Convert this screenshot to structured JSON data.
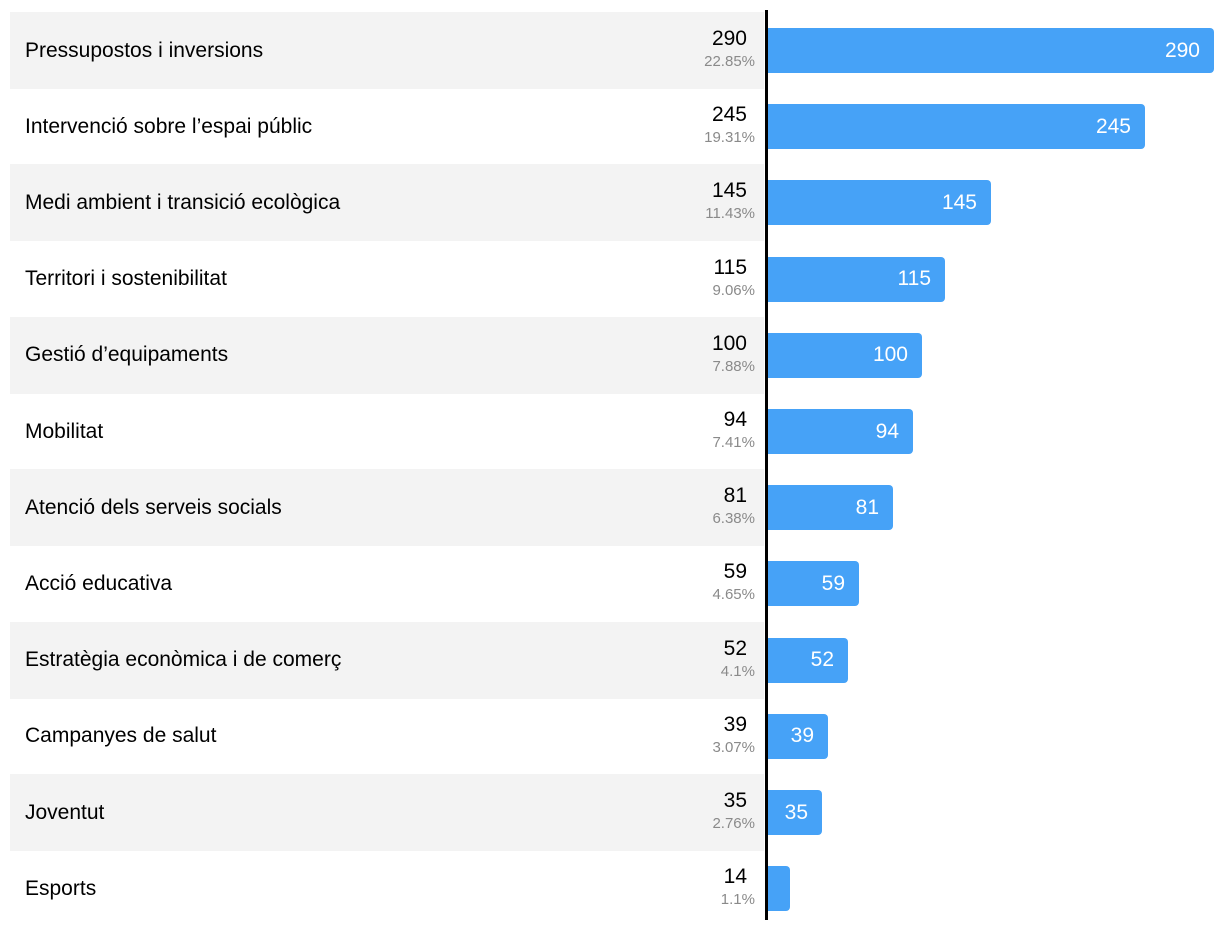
{
  "chart_data": {
    "type": "bar",
    "orientation": "horizontal",
    "categories": [
      "Pressupostos i inversions",
      "Intervenció sobre l’espai públic",
      "Medi ambient i transició ecològica",
      "Territori i sostenibilitat",
      "Gestió d’equipaments",
      "Mobilitat",
      "Atenció dels serveis socials",
      "Acció educativa",
      "Estratègia econòmica i de comerç",
      "Campanyes de salut",
      "Joventut",
      "Esports"
    ],
    "values": [
      290,
      245,
      145,
      115,
      100,
      94,
      81,
      59,
      52,
      39,
      35,
      14
    ],
    "value_labels": [
      "290",
      "245",
      "145",
      "115",
      "100",
      "94",
      "81",
      "59",
      "52",
      "39",
      "35",
      "14"
    ],
    "percentages": [
      "22.85%",
      "19.31%",
      "11.43%",
      "9.06%",
      "7.88%",
      "7.41%",
      "6.38%",
      "4.65%",
      "4.1%",
      "3.07%",
      "2.76%",
      "1.1%"
    ],
    "bar_labels": [
      "290",
      "245",
      "145",
      "115",
      "100",
      "94",
      "81",
      "59",
      "52",
      "39",
      "35",
      ""
    ],
    "xlim": [
      0,
      290
    ],
    "title": "",
    "xlabel": "",
    "ylabel": "",
    "grid": false,
    "colors": {
      "bar": "#46a2f7",
      "row_shade": "#f3f3f3",
      "axis": "#000000",
      "percent_text": "#8a8a8a"
    }
  }
}
